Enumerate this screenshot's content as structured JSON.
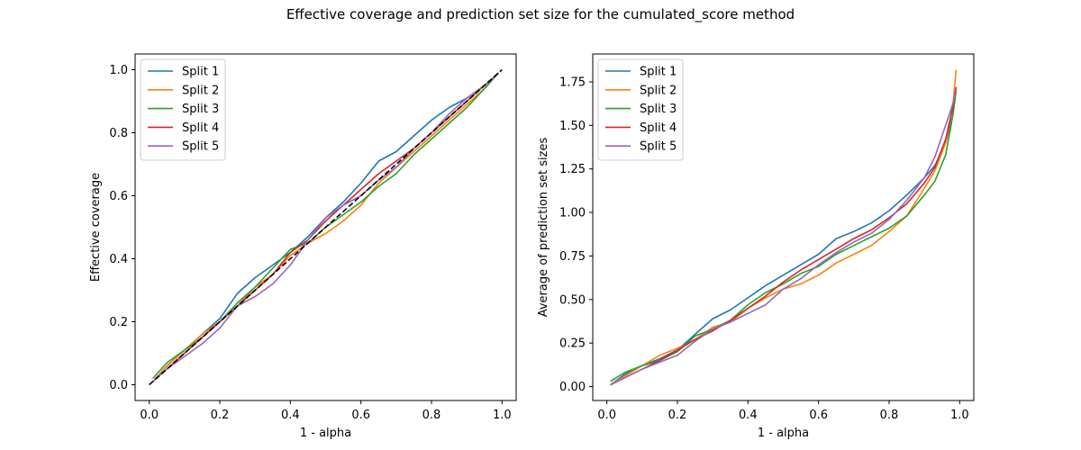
{
  "suptitle": "Effective coverage and prediction set size for the cumulated_score method",
  "chart_data": [
    {
      "type": "line",
      "xlabel": "1 - alpha",
      "ylabel": "Effective coverage",
      "xlim": [
        -0.04,
        1.04
      ],
      "ylim": [
        -0.05,
        1.05
      ],
      "xticks": [
        "0.0",
        "0.2",
        "0.4",
        "0.6",
        "0.8",
        "1.0"
      ],
      "xtick_values": [
        0,
        0.2,
        0.4,
        0.6,
        0.8,
        1.0
      ],
      "yticks": [
        "0.0",
        "0.2",
        "0.4",
        "0.6",
        "0.8",
        "1.0"
      ],
      "ytick_values": [
        0,
        0.2,
        0.4,
        0.6,
        0.8,
        1.0
      ],
      "grid": false,
      "legend_position": "upper-left",
      "series": [
        {
          "name": "Split 1",
          "color": "#1f77b4",
          "x": [
            0.01,
            0.05,
            0.1,
            0.15,
            0.2,
            0.25,
            0.3,
            0.35,
            0.4,
            0.45,
            0.5,
            0.55,
            0.6,
            0.65,
            0.7,
            0.75,
            0.8,
            0.85,
            0.9,
            0.95,
            0.99
          ],
          "values": [
            0.01,
            0.06,
            0.11,
            0.16,
            0.21,
            0.29,
            0.34,
            0.38,
            0.42,
            0.47,
            0.53,
            0.58,
            0.64,
            0.71,
            0.74,
            0.79,
            0.84,
            0.88,
            0.91,
            0.95,
            0.99
          ]
        },
        {
          "name": "Split 2",
          "color": "#ff7f0e",
          "x": [
            0.01,
            0.05,
            0.1,
            0.15,
            0.2,
            0.25,
            0.3,
            0.35,
            0.4,
            0.45,
            0.5,
            0.55,
            0.6,
            0.65,
            0.7,
            0.75,
            0.8,
            0.85,
            0.9,
            0.95,
            0.99
          ],
          "values": [
            0.01,
            0.06,
            0.11,
            0.16,
            0.2,
            0.25,
            0.31,
            0.35,
            0.41,
            0.45,
            0.48,
            0.52,
            0.57,
            0.64,
            0.69,
            0.74,
            0.79,
            0.84,
            0.89,
            0.94,
            0.99
          ]
        },
        {
          "name": "Split 3",
          "color": "#2ca02c",
          "x": [
            0.01,
            0.05,
            0.1,
            0.15,
            0.2,
            0.25,
            0.3,
            0.35,
            0.4,
            0.45,
            0.5,
            0.55,
            0.6,
            0.65,
            0.7,
            0.75,
            0.8,
            0.85,
            0.9,
            0.95,
            0.99
          ],
          "values": [
            0.02,
            0.07,
            0.11,
            0.15,
            0.2,
            0.26,
            0.31,
            0.37,
            0.43,
            0.45,
            0.5,
            0.54,
            0.58,
            0.63,
            0.67,
            0.73,
            0.78,
            0.83,
            0.88,
            0.94,
            0.99
          ]
        },
        {
          "name": "Split 4",
          "color": "#d62728",
          "x": [
            0.01,
            0.05,
            0.1,
            0.15,
            0.2,
            0.25,
            0.3,
            0.35,
            0.4,
            0.45,
            0.5,
            0.55,
            0.6,
            0.65,
            0.7,
            0.75,
            0.8,
            0.85,
            0.9,
            0.95,
            0.99
          ],
          "values": [
            0.01,
            0.05,
            0.1,
            0.15,
            0.2,
            0.25,
            0.3,
            0.35,
            0.42,
            0.46,
            0.52,
            0.57,
            0.62,
            0.67,
            0.71,
            0.75,
            0.8,
            0.85,
            0.9,
            0.95,
            0.99
          ]
        },
        {
          "name": "Split 5",
          "color": "#9467bd",
          "x": [
            0.01,
            0.05,
            0.1,
            0.15,
            0.2,
            0.25,
            0.3,
            0.35,
            0.4,
            0.45,
            0.5,
            0.55,
            0.6,
            0.65,
            0.7,
            0.75,
            0.8,
            0.85,
            0.9,
            0.95,
            0.99
          ],
          "values": [
            0.01,
            0.05,
            0.09,
            0.13,
            0.18,
            0.25,
            0.28,
            0.32,
            0.38,
            0.46,
            0.53,
            0.57,
            0.6,
            0.65,
            0.69,
            0.75,
            0.8,
            0.86,
            0.91,
            0.95,
            0.99
          ]
        },
        {
          "name": "",
          "color": "#000000",
          "dashed": true,
          "x": [
            0.0,
            1.0
          ],
          "values": [
            0.0,
            1.0
          ]
        }
      ]
    },
    {
      "type": "line",
      "xlabel": "1 - alpha",
      "ylabel": "Average of prediction set sizes",
      "xlim": [
        -0.04,
        1.04
      ],
      "ylim": [
        -0.08,
        1.91
      ],
      "xticks": [
        "0.0",
        "0.2",
        "0.4",
        "0.6",
        "0.8",
        "1.0"
      ],
      "xtick_values": [
        0,
        0.2,
        0.4,
        0.6,
        0.8,
        1.0
      ],
      "yticks": [
        "0.00",
        "0.25",
        "0.50",
        "0.75",
        "1.00",
        "1.25",
        "1.50",
        "1.75"
      ],
      "ytick_values": [
        0,
        0.25,
        0.5,
        0.75,
        1.0,
        1.25,
        1.5,
        1.75
      ],
      "grid": false,
      "legend_position": "upper-left",
      "series": [
        {
          "name": "Split 1",
          "color": "#1f77b4",
          "x": [
            0.01,
            0.05,
            0.1,
            0.15,
            0.2,
            0.25,
            0.3,
            0.35,
            0.4,
            0.45,
            0.5,
            0.55,
            0.6,
            0.65,
            0.7,
            0.75,
            0.8,
            0.85,
            0.9,
            0.93,
            0.96,
            0.98,
            0.99
          ],
          "values": [
            0.01,
            0.07,
            0.12,
            0.16,
            0.21,
            0.3,
            0.39,
            0.44,
            0.51,
            0.58,
            0.64,
            0.7,
            0.76,
            0.85,
            0.89,
            0.94,
            1.01,
            1.1,
            1.2,
            1.27,
            1.4,
            1.55,
            1.7
          ]
        },
        {
          "name": "Split 2",
          "color": "#ff7f0e",
          "x": [
            0.01,
            0.05,
            0.1,
            0.15,
            0.2,
            0.25,
            0.3,
            0.35,
            0.4,
            0.45,
            0.5,
            0.55,
            0.6,
            0.65,
            0.7,
            0.75,
            0.8,
            0.85,
            0.9,
            0.93,
            0.96,
            0.98,
            0.99
          ],
          "values": [
            0.01,
            0.06,
            0.12,
            0.18,
            0.22,
            0.27,
            0.34,
            0.37,
            0.45,
            0.51,
            0.56,
            0.59,
            0.64,
            0.71,
            0.76,
            0.81,
            0.89,
            0.98,
            1.14,
            1.24,
            1.4,
            1.6,
            1.82
          ]
        },
        {
          "name": "Split 3",
          "color": "#2ca02c",
          "x": [
            0.01,
            0.05,
            0.1,
            0.15,
            0.2,
            0.25,
            0.3,
            0.35,
            0.4,
            0.45,
            0.5,
            0.55,
            0.6,
            0.65,
            0.7,
            0.75,
            0.8,
            0.85,
            0.9,
            0.93,
            0.96,
            0.98,
            0.99
          ],
          "values": [
            0.03,
            0.08,
            0.12,
            0.15,
            0.2,
            0.29,
            0.33,
            0.38,
            0.47,
            0.54,
            0.59,
            0.65,
            0.69,
            0.76,
            0.81,
            0.86,
            0.91,
            0.98,
            1.1,
            1.18,
            1.33,
            1.55,
            1.7
          ]
        },
        {
          "name": "Split 4",
          "color": "#d62728",
          "x": [
            0.01,
            0.05,
            0.1,
            0.15,
            0.2,
            0.25,
            0.3,
            0.35,
            0.4,
            0.45,
            0.5,
            0.55,
            0.6,
            0.65,
            0.7,
            0.75,
            0.8,
            0.85,
            0.9,
            0.93,
            0.96,
            0.98,
            0.99
          ],
          "values": [
            0.01,
            0.05,
            0.1,
            0.15,
            0.21,
            0.27,
            0.32,
            0.38,
            0.45,
            0.52,
            0.6,
            0.67,
            0.73,
            0.79,
            0.85,
            0.9,
            0.97,
            1.05,
            1.17,
            1.26,
            1.42,
            1.6,
            1.72
          ]
        },
        {
          "name": "Split 5",
          "color": "#9467bd",
          "x": [
            0.01,
            0.05,
            0.1,
            0.15,
            0.2,
            0.25,
            0.3,
            0.35,
            0.4,
            0.45,
            0.5,
            0.55,
            0.6,
            0.65,
            0.7,
            0.75,
            0.8,
            0.85,
            0.9,
            0.93,
            0.96,
            0.98,
            0.99
          ],
          "values": [
            0.01,
            0.05,
            0.1,
            0.14,
            0.18,
            0.26,
            0.33,
            0.37,
            0.42,
            0.47,
            0.56,
            0.62,
            0.7,
            0.77,
            0.83,
            0.88,
            0.96,
            1.07,
            1.2,
            1.32,
            1.5,
            1.62,
            1.7
          ]
        }
      ]
    }
  ]
}
